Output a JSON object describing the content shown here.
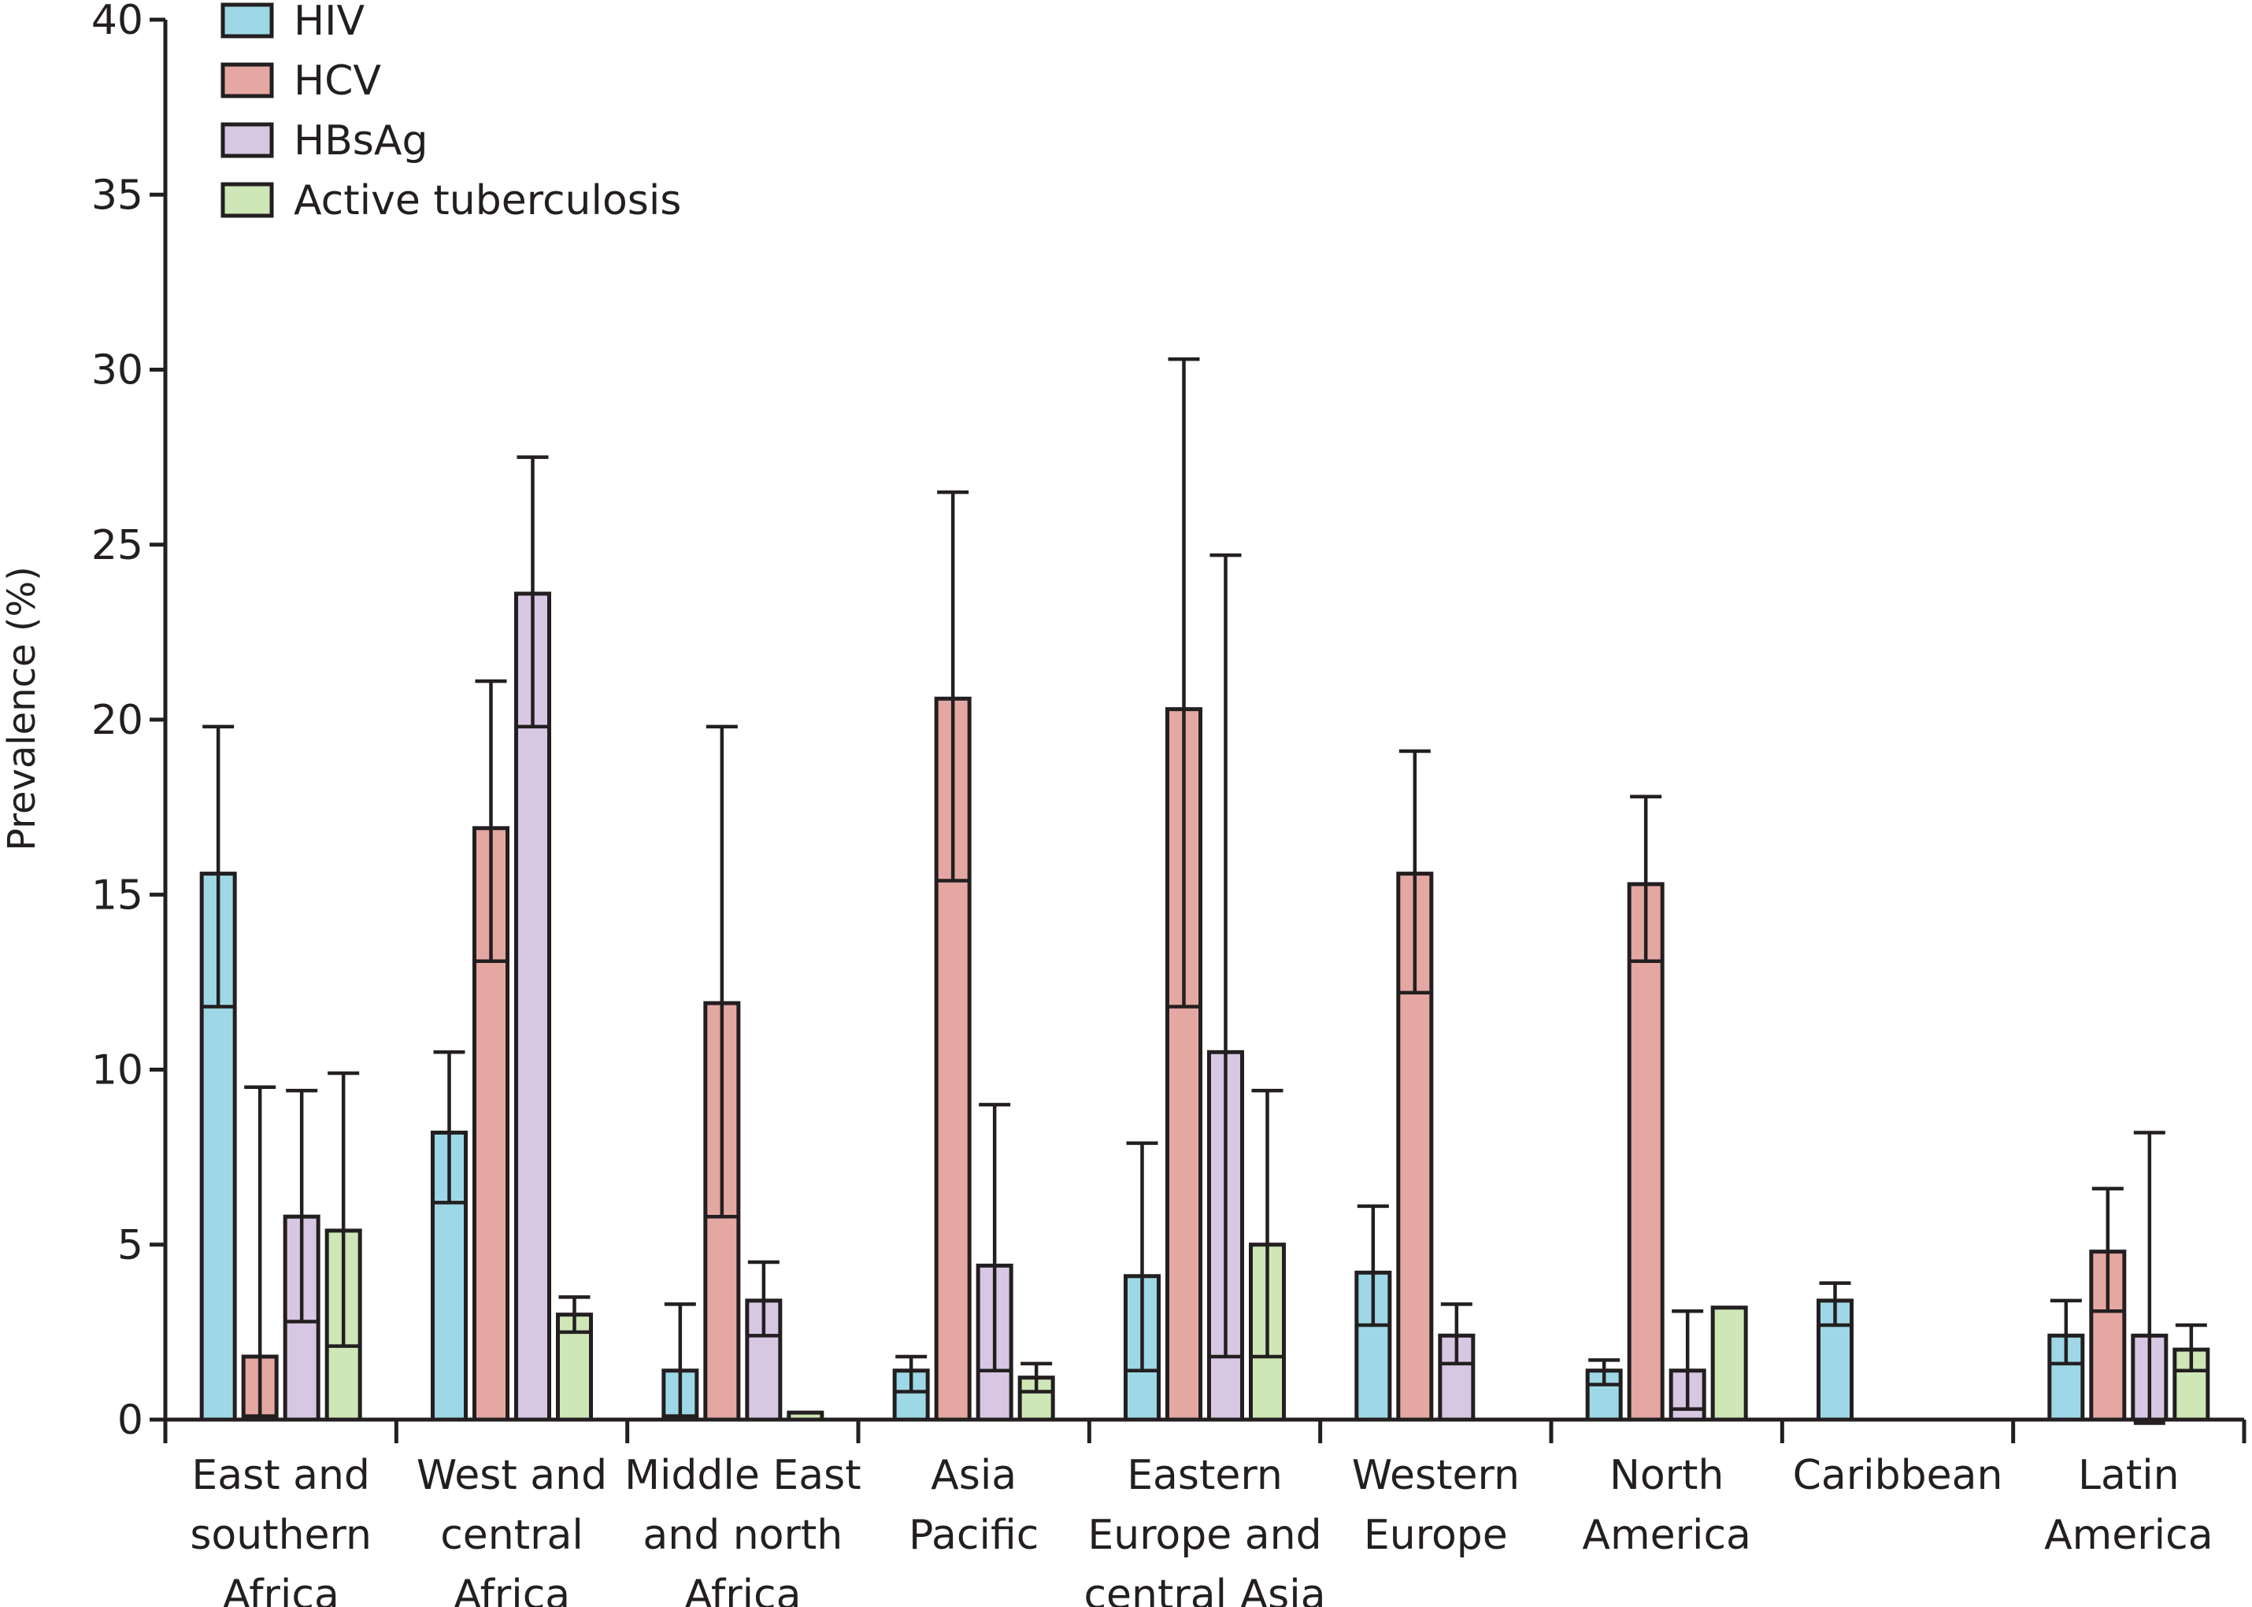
{
  "chart_data": {
    "type": "bar",
    "title": "",
    "xlabel": "",
    "ylabel": "Prevalence (%)",
    "ylim": [
      0,
      40
    ],
    "yticks": [
      0,
      5,
      10,
      15,
      20,
      25,
      30,
      35,
      40
    ],
    "categories": [
      [
        "East and",
        "southern",
        "Africa"
      ],
      [
        "West and",
        "central",
        "Africa"
      ],
      [
        "Middle East",
        "and north",
        "Africa"
      ],
      [
        "Asia",
        "Pacific"
      ],
      [
        "Eastern",
        "Europe and",
        "central Asia"
      ],
      [
        "Western",
        "Europe"
      ],
      [
        "North",
        "America"
      ],
      [
        "Caribbean"
      ],
      [
        "Latin",
        "America"
      ]
    ],
    "series": [
      {
        "name": "HIV",
        "color": "#9ed8e6",
        "values": [
          15.6,
          8.2,
          1.4,
          1.4,
          4.1,
          4.2,
          1.4,
          3.4,
          2.4
        ],
        "err_low": [
          11.8,
          6.2,
          0.1,
          0.8,
          1.4,
          2.7,
          1.0,
          2.7,
          1.6
        ],
        "err_high": [
          19.8,
          10.5,
          3.3,
          1.8,
          7.9,
          6.1,
          1.7,
          3.9,
          3.4
        ]
      },
      {
        "name": "HCV",
        "color": "#e4a7a2",
        "values": [
          1.8,
          16.9,
          11.9,
          20.6,
          20.3,
          15.6,
          15.3,
          null,
          4.8
        ],
        "err_low": [
          0.1,
          13.1,
          5.8,
          15.4,
          11.8,
          12.2,
          13.1,
          null,
          3.1
        ],
        "err_high": [
          9.5,
          21.1,
          19.8,
          26.5,
          30.3,
          19.1,
          17.8,
          null,
          6.6
        ]
      },
      {
        "name": "HBsAg",
        "color": "#d8c7e3",
        "values": [
          5.8,
          23.6,
          3.4,
          4.4,
          10.5,
          2.4,
          1.4,
          null,
          2.4
        ],
        "err_low": [
          2.8,
          19.8,
          2.4,
          1.4,
          1.8,
          1.6,
          0.3,
          null,
          -0.1
        ],
        "err_high": [
          9.4,
          27.5,
          4.5,
          9.0,
          24.7,
          3.3,
          3.1,
          null,
          8.2
        ]
      },
      {
        "name": "Active tuberculosis",
        "color": "#cfe6b6",
        "values": [
          5.4,
          3.0,
          0.2,
          1.2,
          5.0,
          null,
          3.2,
          null,
          2.0
        ],
        "err_low": [
          2.1,
          2.5,
          null,
          0.8,
          1.8,
          null,
          null,
          null,
          1.4
        ],
        "err_high": [
          9.9,
          3.5,
          null,
          1.6,
          9.4,
          null,
          null,
          null,
          2.7
        ]
      }
    ]
  }
}
